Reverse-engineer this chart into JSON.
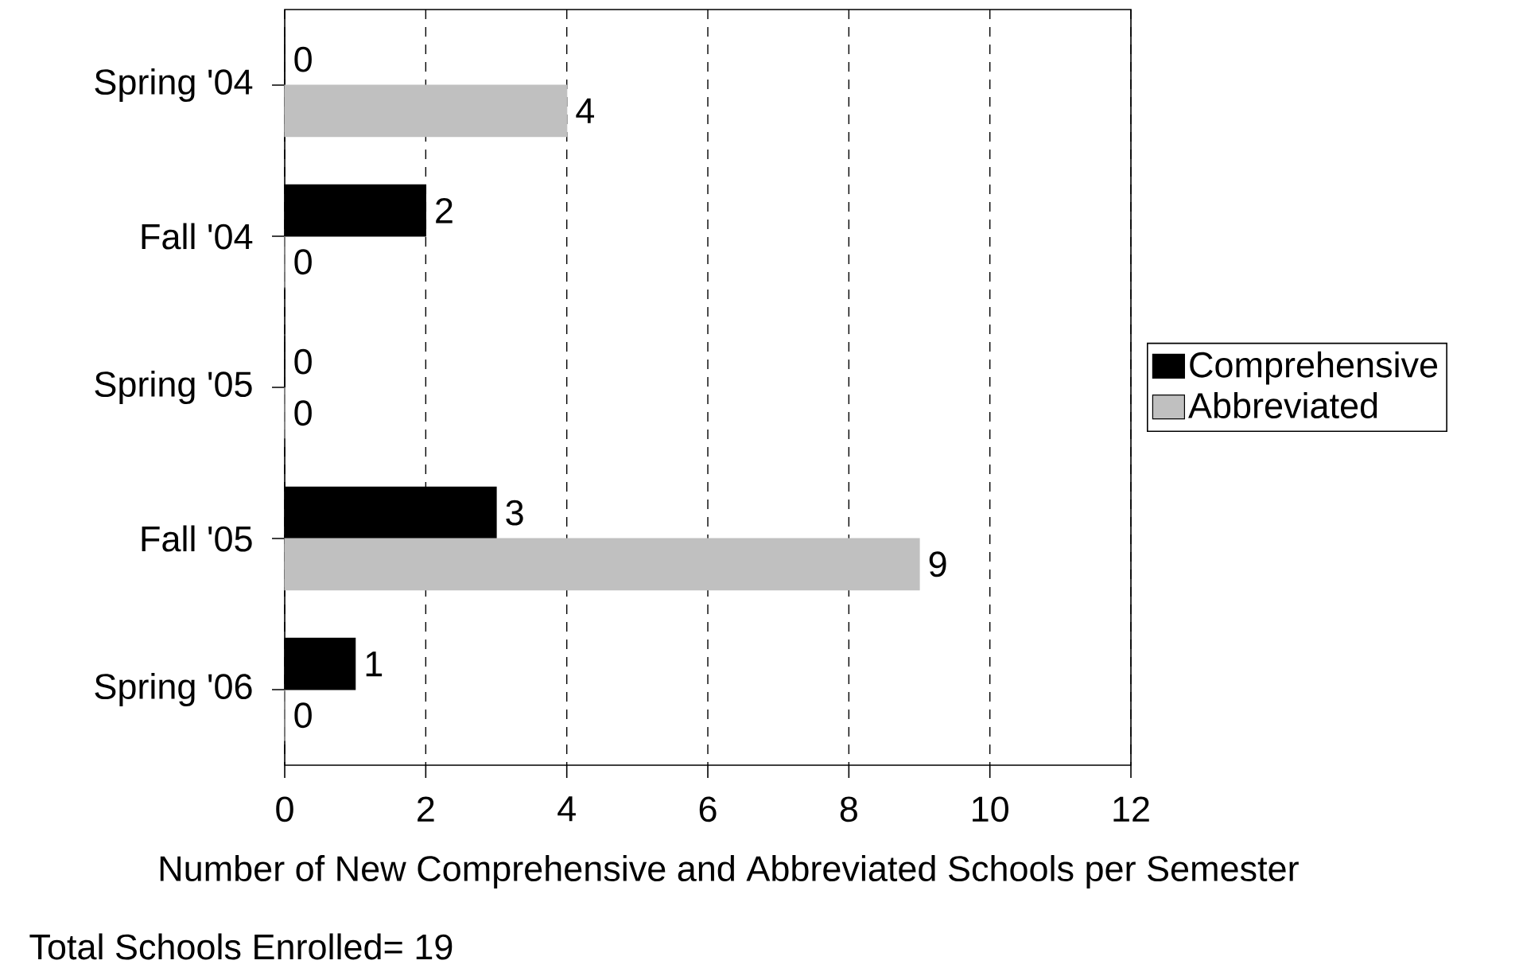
{
  "chart_data": {
    "type": "bar",
    "orientation": "horizontal",
    "categories": [
      "Spring '04",
      "Fall '04",
      "Spring '05",
      "Fall '05",
      "Spring '06"
    ],
    "series": [
      {
        "name": "Comprehensive",
        "color": "#000000",
        "values": [
          0,
          2,
          0,
          3,
          1
        ]
      },
      {
        "name": "Abbreviated",
        "color": "#c0c0c0",
        "values": [
          4,
          0,
          0,
          9,
          0
        ]
      }
    ],
    "xlabel": "Number of New Comprehensive and Abbreviated Schools per Semester",
    "annotations": [
      "Total Schools Enrolled= 19"
    ],
    "xlim": [
      0,
      12
    ],
    "xticks": [
      0,
      2,
      4,
      6,
      8,
      10,
      12
    ],
    "grid": "x",
    "legend": "right",
    "data_labels": true
  }
}
